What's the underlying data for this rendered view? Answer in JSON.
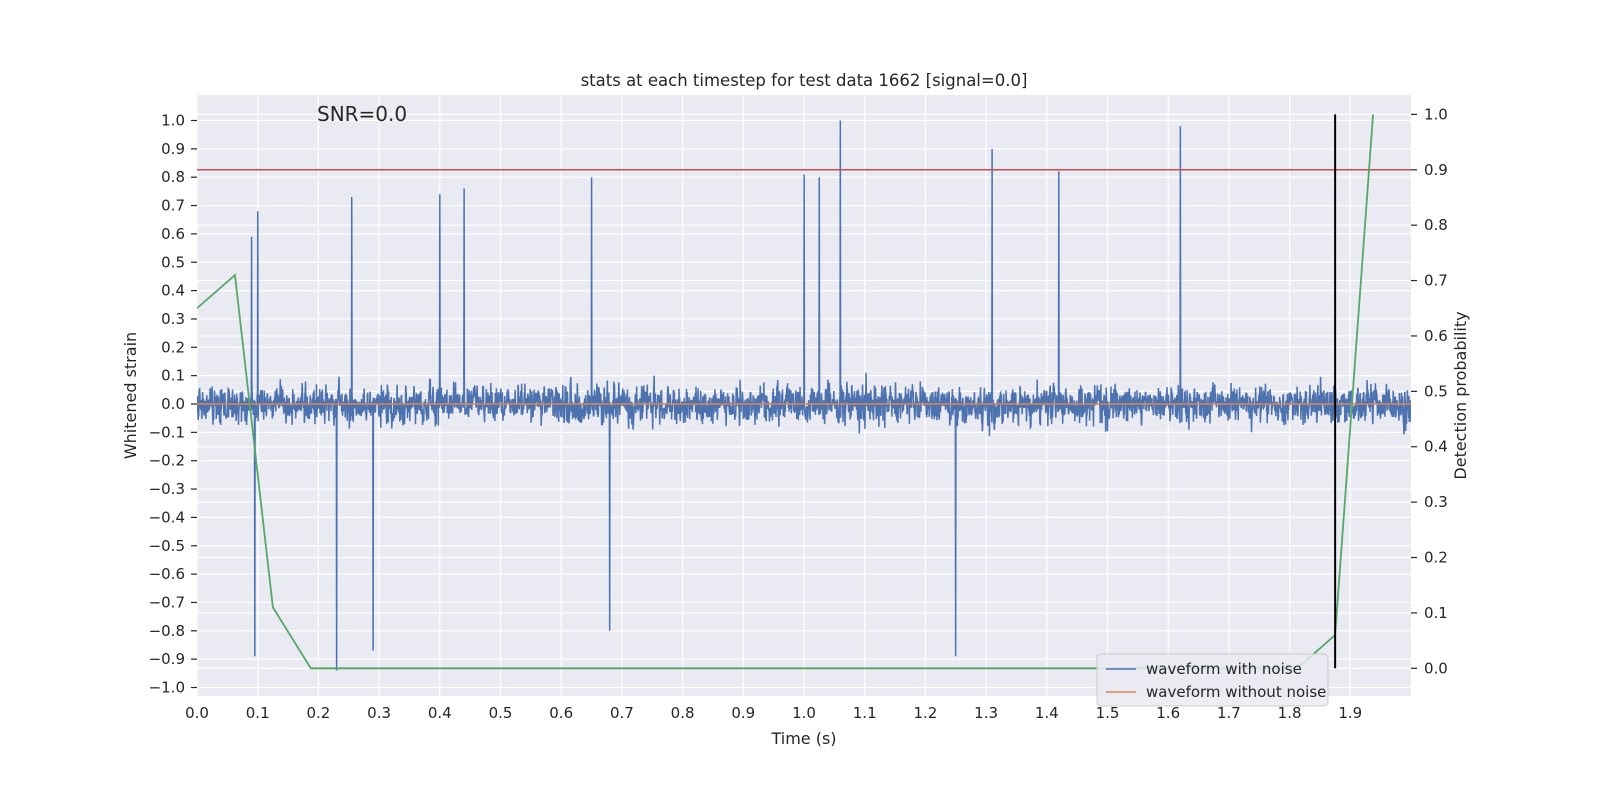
{
  "chart_data": {
    "type": "line",
    "title": "stats at each timestep for test data 1662 [signal=0.0]",
    "annotation": "SNR=0.0",
    "xlabel": "Time (s)",
    "ylabel": "Whitened strain",
    "y2label": "Detection probability",
    "xlim": [
      0.0,
      2.0
    ],
    "ylim": [
      -1.03,
      1.09
    ],
    "y2lim": [
      -0.05,
      1.035
    ],
    "x_ticks": [
      0.0,
      0.1,
      0.2,
      0.3,
      0.4,
      0.5,
      0.6,
      0.7,
      0.8,
      0.9,
      1.0,
      1.1,
      1.2,
      1.3,
      1.4,
      1.5,
      1.6,
      1.7,
      1.8,
      1.9
    ],
    "x_tick_labels": [
      "0.0",
      "0.1",
      "0.2",
      "0.3",
      "0.4",
      "0.5",
      "0.6",
      "0.7",
      "0.8",
      "0.9",
      "1.0",
      "1.1",
      "1.2",
      "1.3",
      "1.4",
      "1.5",
      "1.6",
      "1.7",
      "1.8",
      "1.9"
    ],
    "y_ticks": [
      -1.0,
      -0.9,
      -0.8,
      -0.7,
      -0.6,
      -0.5,
      -0.4,
      -0.3,
      -0.2,
      -0.1,
      0.0,
      0.1,
      0.2,
      0.3,
      0.4,
      0.5,
      0.6,
      0.7,
      0.8,
      0.9,
      1.0
    ],
    "y_tick_labels": [
      "−1.0",
      "−0.9",
      "−0.8",
      "−0.7",
      "−0.6",
      "−0.5",
      "−0.4",
      "−0.3",
      "−0.2",
      "−0.1",
      "0.0",
      "0.1",
      "0.2",
      "0.3",
      "0.4",
      "0.5",
      "0.6",
      "0.7",
      "0.8",
      "0.9",
      "1.0"
    ],
    "y2_ticks": [
      0.0,
      0.1,
      0.2,
      0.3,
      0.4,
      0.5,
      0.6,
      0.7,
      0.8,
      0.9,
      1.0
    ],
    "y2_tick_labels": [
      "0.0",
      "0.1",
      "0.2",
      "0.3",
      "0.4",
      "0.5",
      "0.6",
      "0.7",
      "0.8",
      "0.9",
      "1.0"
    ],
    "grid": true,
    "legend_position": "bottom-right",
    "series": [
      {
        "name": "waveform with noise",
        "axis": "left",
        "color": "#4c72b0",
        "x_range": [
          0.0,
          2.0
        ],
        "samples": 4096,
        "value_range": [
          -0.94,
          1.0
        ],
        "peaks": [
          {
            "x": 1.06,
            "y": 1.0
          },
          {
            "x": 1.62,
            "y": 0.98
          },
          {
            "x": 1.31,
            "y": 0.9
          },
          {
            "x": 1.42,
            "y": 0.82
          },
          {
            "x": 1.0,
            "y": 0.81
          },
          {
            "x": 1.025,
            "y": 0.8
          },
          {
            "x": 0.65,
            "y": 0.8
          },
          {
            "x": 0.23,
            "y": -0.94
          },
          {
            "x": 0.095,
            "y": -0.89
          },
          {
            "x": 1.25,
            "y": -0.89
          },
          {
            "x": 0.29,
            "y": -0.87
          },
          {
            "x": 0.68,
            "y": -0.8
          },
          {
            "x": 0.09,
            "y": 0.59
          },
          {
            "x": 0.1,
            "y": 0.68
          },
          {
            "x": 0.255,
            "y": 0.73
          },
          {
            "x": 0.44,
            "y": 0.76
          },
          {
            "x": 0.4,
            "y": 0.74
          }
        ]
      },
      {
        "name": "waveform without noise",
        "axis": "left",
        "color": "#dd8452",
        "x": [
          0.0,
          2.0
        ],
        "y": [
          0.0,
          0.0
        ]
      },
      {
        "name": "Detection probability",
        "axis": "right",
        "color": "#55a868",
        "x": [
          0.0,
          0.0625,
          0.125,
          0.1875,
          0.25,
          0.3125,
          1.8125,
          1.875,
          1.9375
        ],
        "y": [
          0.65,
          0.71,
          0.11,
          0.0,
          0.0,
          0.0,
          0.0,
          0.06,
          1.0
        ]
      }
    ],
    "hlines": [
      {
        "axis": "right",
        "y": 0.9,
        "color": "#c44e52"
      }
    ],
    "vlines": [
      {
        "x": 1.875,
        "ymin": 0.0,
        "ymax": 1.0,
        "axis": "right",
        "color": "#000000"
      }
    ],
    "colors": {
      "background": "#eaeaf2",
      "grid": "#ffffff"
    }
  }
}
